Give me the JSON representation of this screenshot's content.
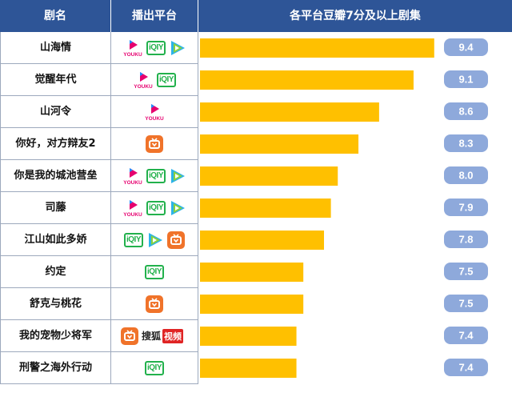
{
  "header": {
    "col_name": "剧名",
    "col_platform": "播出平台",
    "col_chart": "各平台豆瓣7分及以上剧集"
  },
  "platform_labels": {
    "youku": "YOUKU",
    "iqiyi": "iQIY",
    "sohu_a": "搜狐",
    "sohu_b": "视频"
  },
  "colors": {
    "header_bg": "#2e5597",
    "bar": "#ffc000",
    "score_badge": "#8ea9db",
    "youku": "#e6006f",
    "iqiyi": "#22b14c",
    "tencent": "#2bb3e8",
    "mango": "#f0732a",
    "sohu": "#e02424"
  },
  "rows": [
    {
      "name": "山海情",
      "platforms": [
        "youku",
        "iqiyi",
        "tencent"
      ]
    },
    {
      "name": "觉醒年代",
      "platforms": [
        "youku",
        "iqiyi"
      ]
    },
    {
      "name": "山河令",
      "platforms": [
        "youku"
      ]
    },
    {
      "name": "你好，对方辩友2",
      "platforms": [
        "mango"
      ]
    },
    {
      "name": "你是我的城池营垒",
      "platforms": [
        "youku",
        "iqiyi",
        "tencent"
      ]
    },
    {
      "name": "司藤",
      "platforms": [
        "youku",
        "iqiyi",
        "tencent"
      ]
    },
    {
      "name": "江山如此多娇",
      "platforms": [
        "iqiyi",
        "tencent",
        "mango"
      ]
    },
    {
      "name": "约定",
      "platforms": [
        "iqiyi"
      ]
    },
    {
      "name": "舒克与桃花",
      "platforms": [
        "mango"
      ]
    },
    {
      "name": "我的宠物少将军",
      "platforms": [
        "mango",
        "sohu"
      ]
    },
    {
      "name": "刑警之海外行动",
      "platforms": [
        "iqiyi"
      ]
    }
  ],
  "chart_data": {
    "type": "bar",
    "orientation": "horizontal",
    "title": "各平台豆瓣7分及以上剧集",
    "categories": [
      "山海情",
      "觉醒年代",
      "山河令",
      "你好，对方辩友2",
      "你是我的城池营垒",
      "司藤",
      "江山如此多娇",
      "约定",
      "舒克与桃花",
      "我的宠物少将军",
      "刑警之海外行动"
    ],
    "values": [
      9.4,
      9.1,
      8.6,
      8.3,
      8.0,
      7.9,
      7.8,
      7.5,
      7.5,
      7.4,
      7.4
    ],
    "value_labels": [
      "9.4",
      "9.1",
      "8.6",
      "8.3",
      "8.0",
      "7.9",
      "7.8",
      "7.5",
      "7.5",
      "7.4",
      "7.4"
    ],
    "xlim": [
      6.0,
      9.6
    ],
    "grid": false,
    "legend": "none"
  }
}
